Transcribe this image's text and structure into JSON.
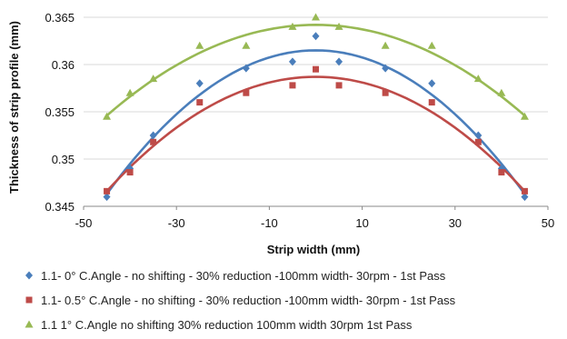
{
  "chart_data": {
    "type": "scatter",
    "xlabel": "Strip width (mm)",
    "ylabel": "Thickness of strip profile (mm)",
    "xlim": [
      -50,
      50
    ],
    "ylim": [
      0.345,
      0.365
    ],
    "x_ticks": [
      "-50",
      "-30",
      "-10",
      "10",
      "30",
      "50"
    ],
    "y_ticks": [
      "0.345",
      "0.35",
      "0.355",
      "0.36",
      "0.365"
    ],
    "grid": "horizontal",
    "legend_position": "bottom",
    "series": [
      {
        "name": "1.1- 0° C.Angle - no shifting - 30% reduction -100mm width- 30rpm - 1st Pass",
        "marker": "diamond",
        "color": "#4A7EBB",
        "x": [
          -45,
          -40,
          -35,
          -25,
          -15,
          -5,
          0,
          5,
          15,
          25,
          35,
          40,
          45
        ],
        "y": [
          0.346,
          0.349,
          0.3525,
          0.358,
          0.3596,
          0.3603,
          0.363,
          0.3603,
          0.3596,
          0.358,
          0.3525,
          0.349,
          0.346
        ],
        "trend": {
          "type": "polynomial",
          "x": [
            -45,
            0,
            45
          ],
          "y": [
            0.3463,
            0.3615,
            0.3463
          ]
        }
      },
      {
        "name": "1.1- 0.5° C.Angle - no shifting - 30% reduction -100mm width- 30rpm - 1st Pass",
        "marker": "square",
        "color": "#BE4B48",
        "x": [
          -45,
          -40,
          -35,
          -25,
          -15,
          -5,
          0,
          5,
          15,
          25,
          35,
          40,
          45
        ],
        "y": [
          0.3466,
          0.3486,
          0.3518,
          0.356,
          0.357,
          0.3578,
          0.3595,
          0.3578,
          0.357,
          0.356,
          0.3518,
          0.3486,
          0.3466
        ],
        "trend": {
          "type": "polynomial",
          "x": [
            -45,
            0,
            45
          ],
          "y": [
            0.3466,
            0.3587,
            0.3466
          ]
        }
      },
      {
        "name": "1.1 1° C.Angle no shifting 30% reduction 100mm width 30rpm 1st Pass",
        "marker": "triangle",
        "color": "#98B954",
        "x": [
          -45,
          -40,
          -35,
          -25,
          -15,
          -5,
          0,
          5,
          15,
          25,
          35,
          40,
          45
        ],
        "y": [
          0.3545,
          0.357,
          0.3585,
          0.362,
          0.362,
          0.364,
          0.365,
          0.364,
          0.362,
          0.362,
          0.3585,
          0.357,
          0.3545
        ],
        "trend": {
          "type": "polynomial",
          "x": [
            -45,
            0,
            45
          ],
          "y": [
            0.3546,
            0.3642,
            0.3546
          ]
        }
      }
    ]
  }
}
